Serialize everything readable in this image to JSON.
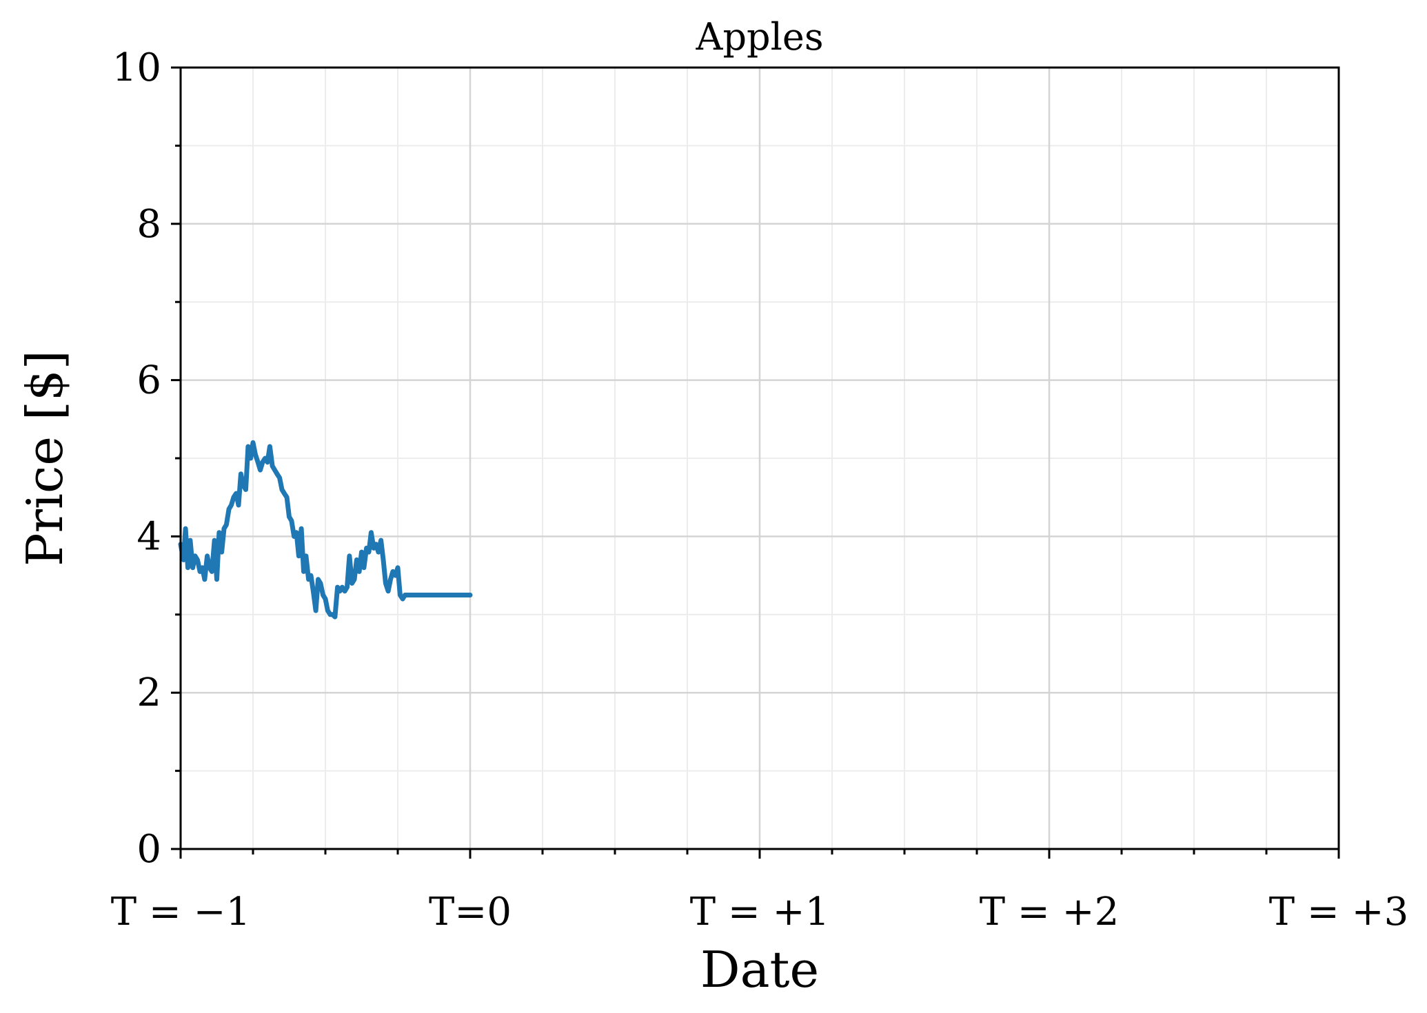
{
  "chart_data": {
    "type": "line",
    "title": "Apples",
    "xlabel": "Date",
    "ylabel": "Price [$]",
    "xlim": [
      -1,
      3
    ],
    "ylim": [
      0,
      10
    ],
    "x_major_ticks": [
      -1,
      0,
      1,
      2,
      3
    ],
    "x_minor_ticks": [
      -0.75,
      -0.5,
      -0.25,
      0.25,
      0.5,
      0.75,
      1.25,
      1.5,
      1.75,
      2.25,
      2.5,
      2.75
    ],
    "x_tick_labels": [
      "T = −1",
      "T=0",
      "T = +1",
      "T = +2",
      "T = +3"
    ],
    "y_major_ticks": [
      0,
      2,
      4,
      6,
      8,
      10
    ],
    "y_minor_ticks": [
      1,
      3,
      5,
      7,
      9
    ],
    "y_tick_labels": [
      "0",
      "2",
      "4",
      "6",
      "8",
      "10"
    ],
    "grid": true,
    "colors": {
      "series": "#1f77b4"
    },
    "series": [
      {
        "x": [
          -1.0,
          -0.99,
          -0.983,
          -0.975,
          -0.967,
          -0.958,
          -0.95,
          -0.942,
          -0.933,
          -0.925,
          -0.917,
          -0.908,
          -0.9,
          -0.892,
          -0.883,
          -0.875,
          -0.867,
          -0.858,
          -0.85,
          -0.842,
          -0.833,
          -0.825,
          -0.817,
          -0.808,
          -0.8,
          -0.792,
          -0.783,
          -0.775,
          -0.767,
          -0.758,
          -0.75,
          -0.742,
          -0.733,
          -0.725,
          -0.717,
          -0.708,
          -0.7,
          -0.692,
          -0.683,
          -0.675,
          -0.667,
          -0.658,
          -0.65,
          -0.642,
          -0.633,
          -0.625,
          -0.617,
          -0.608,
          -0.6,
          -0.592,
          -0.583,
          -0.575,
          -0.567,
          -0.558,
          -0.55,
          -0.542,
          -0.533,
          -0.525,
          -0.517,
          -0.508,
          -0.5,
          -0.492,
          -0.483,
          -0.475,
          -0.467,
          -0.458,
          -0.45,
          -0.442,
          -0.433,
          -0.425,
          -0.417,
          -0.408,
          -0.4,
          -0.392,
          -0.383,
          -0.375,
          -0.367,
          -0.358,
          -0.35,
          -0.342,
          -0.333,
          -0.325,
          -0.317,
          -0.308,
          -0.3,
          -0.292,
          -0.283,
          -0.275,
          -0.267,
          -0.258,
          -0.25,
          -0.242,
          -0.233,
          -0.225,
          -0.217,
          -0.208,
          -0.2,
          -0.192,
          -0.183,
          -0.175,
          -0.167,
          -0.158,
          -0.15,
          -0.142,
          -0.133,
          -0.125,
          -0.117,
          -0.108,
          -0.1,
          -0.092,
          -0.083,
          -0.075,
          -0.067,
          -0.058,
          -0.05,
          -0.042,
          -0.033,
          -0.025,
          -0.017,
          -0.008,
          0.0
        ],
        "y": [
          3.9,
          3.7,
          4.1,
          3.6,
          3.95,
          3.6,
          3.75,
          3.7,
          3.55,
          3.6,
          3.45,
          3.75,
          3.6,
          3.55,
          3.95,
          3.45,
          4.05,
          3.8,
          4.1,
          4.15,
          4.35,
          4.4,
          4.5,
          4.55,
          4.4,
          4.8,
          4.65,
          4.6,
          5.15,
          5.0,
          5.2,
          5.05,
          4.95,
          4.85,
          4.95,
          5.0,
          4.95,
          5.15,
          4.9,
          4.85,
          4.8,
          4.75,
          4.6,
          4.55,
          4.5,
          4.25,
          4.2,
          4.0,
          4.05,
          3.75,
          4.1,
          3.55,
          3.75,
          3.45,
          3.5,
          3.3,
          3.05,
          3.45,
          3.4,
          3.25,
          3.2,
          3.05,
          3.0,
          3.0,
          2.97,
          3.35,
          3.3,
          3.35,
          3.3,
          3.35,
          3.75,
          3.4,
          3.45,
          3.7,
          3.55,
          3.8,
          3.6,
          3.85,
          3.8,
          4.05,
          3.85,
          3.9,
          3.8,
          3.95,
          3.7,
          3.4,
          3.3,
          3.45,
          3.55,
          3.5,
          3.6,
          3.25,
          3.2,
          3.25,
          3.25,
          3.25,
          3.25,
          3.25,
          3.25,
          3.25,
          3.25,
          3.25,
          3.25,
          3.25,
          3.25,
          3.25,
          3.25,
          3.25,
          3.25,
          3.25,
          3.25,
          3.25,
          3.25,
          3.25,
          3.25,
          3.25,
          3.25,
          3.25,
          3.25,
          3.25,
          3.25
        ]
      }
    ]
  }
}
